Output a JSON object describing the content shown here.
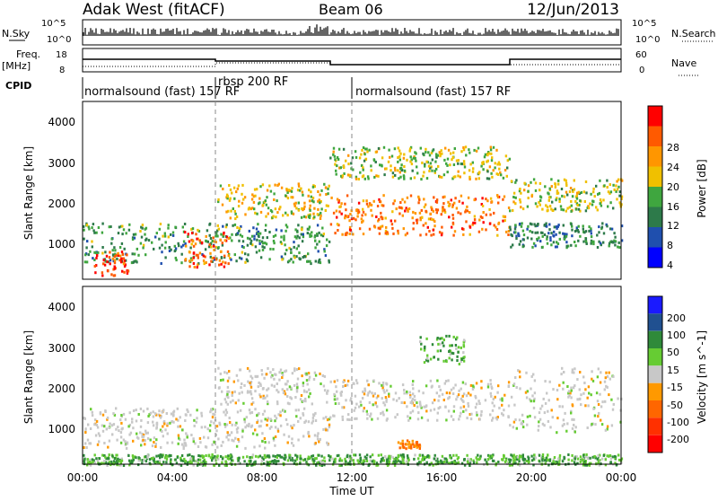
{
  "header": {
    "station": "Adak West (fitACF)",
    "beam": "Beam 06",
    "date": "12/Jun/2013"
  },
  "noise_panel": {
    "left_label": "N.Sky",
    "right_label": "N.Search",
    "ticks": [
      "10^5",
      "10^0"
    ]
  },
  "freq_panel": {
    "left_label_top": "Freq.",
    "left_label_bottom": "[MHz]",
    "left_ticks": [
      "18",
      "8"
    ],
    "right_label": "Nave",
    "right_ticks": [
      "60",
      "0"
    ]
  },
  "cpid": {
    "label": "CPID",
    "segments": [
      "normalsound (fast) 157 RF",
      "rbsp 200 RF",
      "normalsound (fast) 157 RF"
    ]
  },
  "power_colorbar": {
    "label": "Power [dB]",
    "ticks": [
      "28",
      "24",
      "20",
      "16",
      "12",
      "8",
      "4"
    ],
    "colors": [
      "#ff0000",
      "#ff5a00",
      "#ff9600",
      "#f0c000",
      "#3fa63f",
      "#2d7a4a",
      "#1f4fae",
      "#0000ff"
    ]
  },
  "velocity_colorbar": {
    "label": "Velocity [m s^-1]",
    "ticks": [
      "200",
      "100",
      "50",
      "15",
      "-15",
      "-50",
      "-100",
      "-200"
    ],
    "colors": [
      "#1a1aff",
      "#205090",
      "#2f8a3a",
      "#66cc33",
      "#c8c8c8",
      "#ff9900",
      "#ff6600",
      "#ff3000",
      "#ff0000"
    ]
  },
  "axes": {
    "ylabel": "Slant Range [km]",
    "xlabel": "Time UT",
    "yticks": [
      "4000",
      "3000",
      "2000",
      "1000"
    ],
    "xticks": [
      "00:00",
      "04:00",
      "08:00",
      "12:00",
      "16:00",
      "20:00",
      "00:00"
    ]
  },
  "chart_data": [
    {
      "type": "heatmap",
      "panel": "power",
      "xlabel": "Time UT",
      "ylabel": "Slant Range [km]",
      "x_range_hours": [
        0,
        24
      ],
      "ylim": [
        180,
        4600
      ],
      "colorbar": "Power [dB]",
      "regions": [
        {
          "t0": 0.0,
          "t1": 11.0,
          "r0": 600,
          "r1": 1600,
          "power": 10
        },
        {
          "t0": 0.5,
          "t1": 2.0,
          "r0": 300,
          "r1": 900,
          "power": 26
        },
        {
          "t0": 4.5,
          "t1": 6.5,
          "r0": 500,
          "r1": 1400,
          "power": 24
        },
        {
          "t0": 6.0,
          "t1": 11.0,
          "r0": 1700,
          "r1": 2600,
          "power": 16
        },
        {
          "t0": 11.0,
          "t1": 19.0,
          "r0": 1300,
          "r1": 2300,
          "power": 22
        },
        {
          "t0": 11.0,
          "t1": 19.0,
          "r0": 2700,
          "r1": 3500,
          "power": 14
        },
        {
          "t0": 19.0,
          "t1": 24.0,
          "r0": 1000,
          "r1": 1600,
          "power": 8
        },
        {
          "t0": 19.0,
          "t1": 24.0,
          "r0": 1900,
          "r1": 2700,
          "power": 14
        }
      ]
    },
    {
      "type": "heatmap",
      "panel": "velocity",
      "xlabel": "Time UT",
      "ylabel": "Slant Range [km]",
      "x_range_hours": [
        0,
        24
      ],
      "ylim": [
        180,
        4600
      ],
      "colorbar": "Velocity [m s^-1]",
      "regions": [
        {
          "t0": 0.0,
          "t1": 11.0,
          "r0": 600,
          "r1": 1600,
          "velocity": 0
        },
        {
          "t0": 6.0,
          "t1": 11.0,
          "r0": 1700,
          "r1": 2600,
          "velocity": 0
        },
        {
          "t0": 11.0,
          "t1": 19.0,
          "r0": 1300,
          "r1": 2300,
          "velocity": 0
        },
        {
          "t0": 15.0,
          "t1": 17.0,
          "r0": 2700,
          "r1": 3400,
          "velocity": 30
        },
        {
          "t0": 14.0,
          "t1": 15.0,
          "r0": 600,
          "r1": 800,
          "velocity": -60
        },
        {
          "t0": 19.0,
          "t1": 24.0,
          "r0": 1000,
          "r1": 2600,
          "velocity": 0
        },
        {
          "t0": 0.0,
          "t1": 24.0,
          "r0": 180,
          "r1": 450,
          "velocity": 30
        }
      ]
    }
  ]
}
